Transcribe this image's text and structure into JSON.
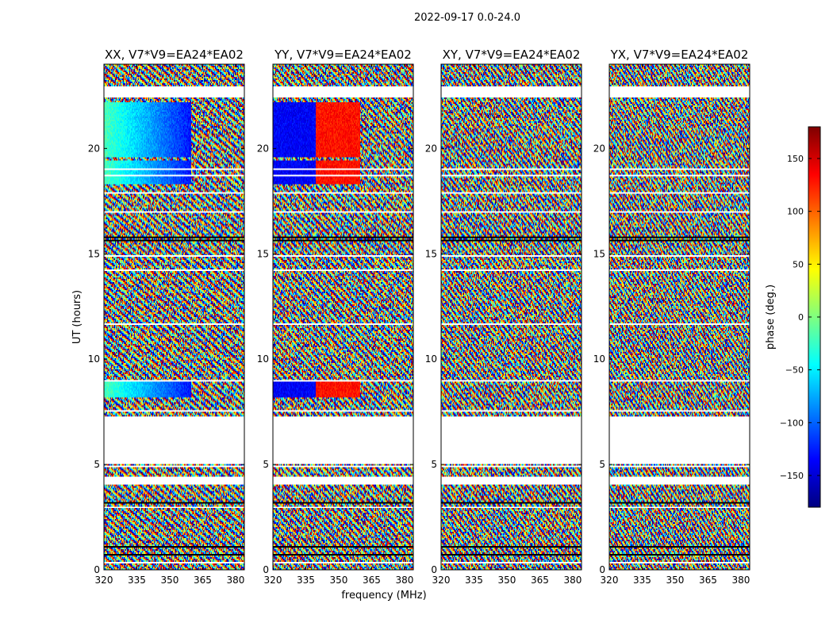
{
  "suptitle": "2022-09-17 0.0-24.0",
  "ylabel": "UT (hours)",
  "xlabel": "frequency (MHz)",
  "colorbar": {
    "label": "phase (deg.)",
    "range": [
      -180,
      180
    ],
    "ticks": [
      -150,
      -100,
      -50,
      0,
      50,
      100,
      150
    ],
    "tick_labels": [
      "−150",
      "−100",
      "−50",
      "0",
      "50",
      "100",
      "150"
    ],
    "colormap": "jet",
    "colors": [
      "#00007f",
      "#0000ff",
      "#007fff",
      "#00ffff",
      "#7fff7f",
      "#ffff00",
      "#ff7f00",
      "#ff0000",
      "#7f0000"
    ]
  },
  "chart_data": {
    "type": "heatmap",
    "title": "2022-09-17 0.0-24.0",
    "xlabel": "frequency (MHz)",
    "ylabel": "UT (hours)",
    "xlim": [
      320,
      384
    ],
    "ylim": [
      0,
      24
    ],
    "xticks": [
      320,
      335,
      350,
      365,
      380
    ],
    "yticks": [
      0,
      5,
      10,
      15,
      20
    ],
    "value_label": "phase (deg.)",
    "value_range": [
      -180,
      180
    ],
    "panels": [
      {
        "title": "XX, V7*V9=EA24*EA02",
        "polarization": "XX"
      },
      {
        "title": "YY, V7*V9=EA24*EA02",
        "polarization": "YY"
      },
      {
        "title": "XY, V7*V9=EA24*EA02",
        "polarization": "XY"
      },
      {
        "title": "YX, V7*V9=EA24*EA02",
        "polarization": "YX"
      }
    ],
    "flagged_time_ranges_hours": [
      [
        4.05,
        4.45
      ],
      [
        5.0,
        7.25
      ],
      [
        22.4,
        22.95
      ]
    ],
    "flagged_all_frequencies": true
  }
}
